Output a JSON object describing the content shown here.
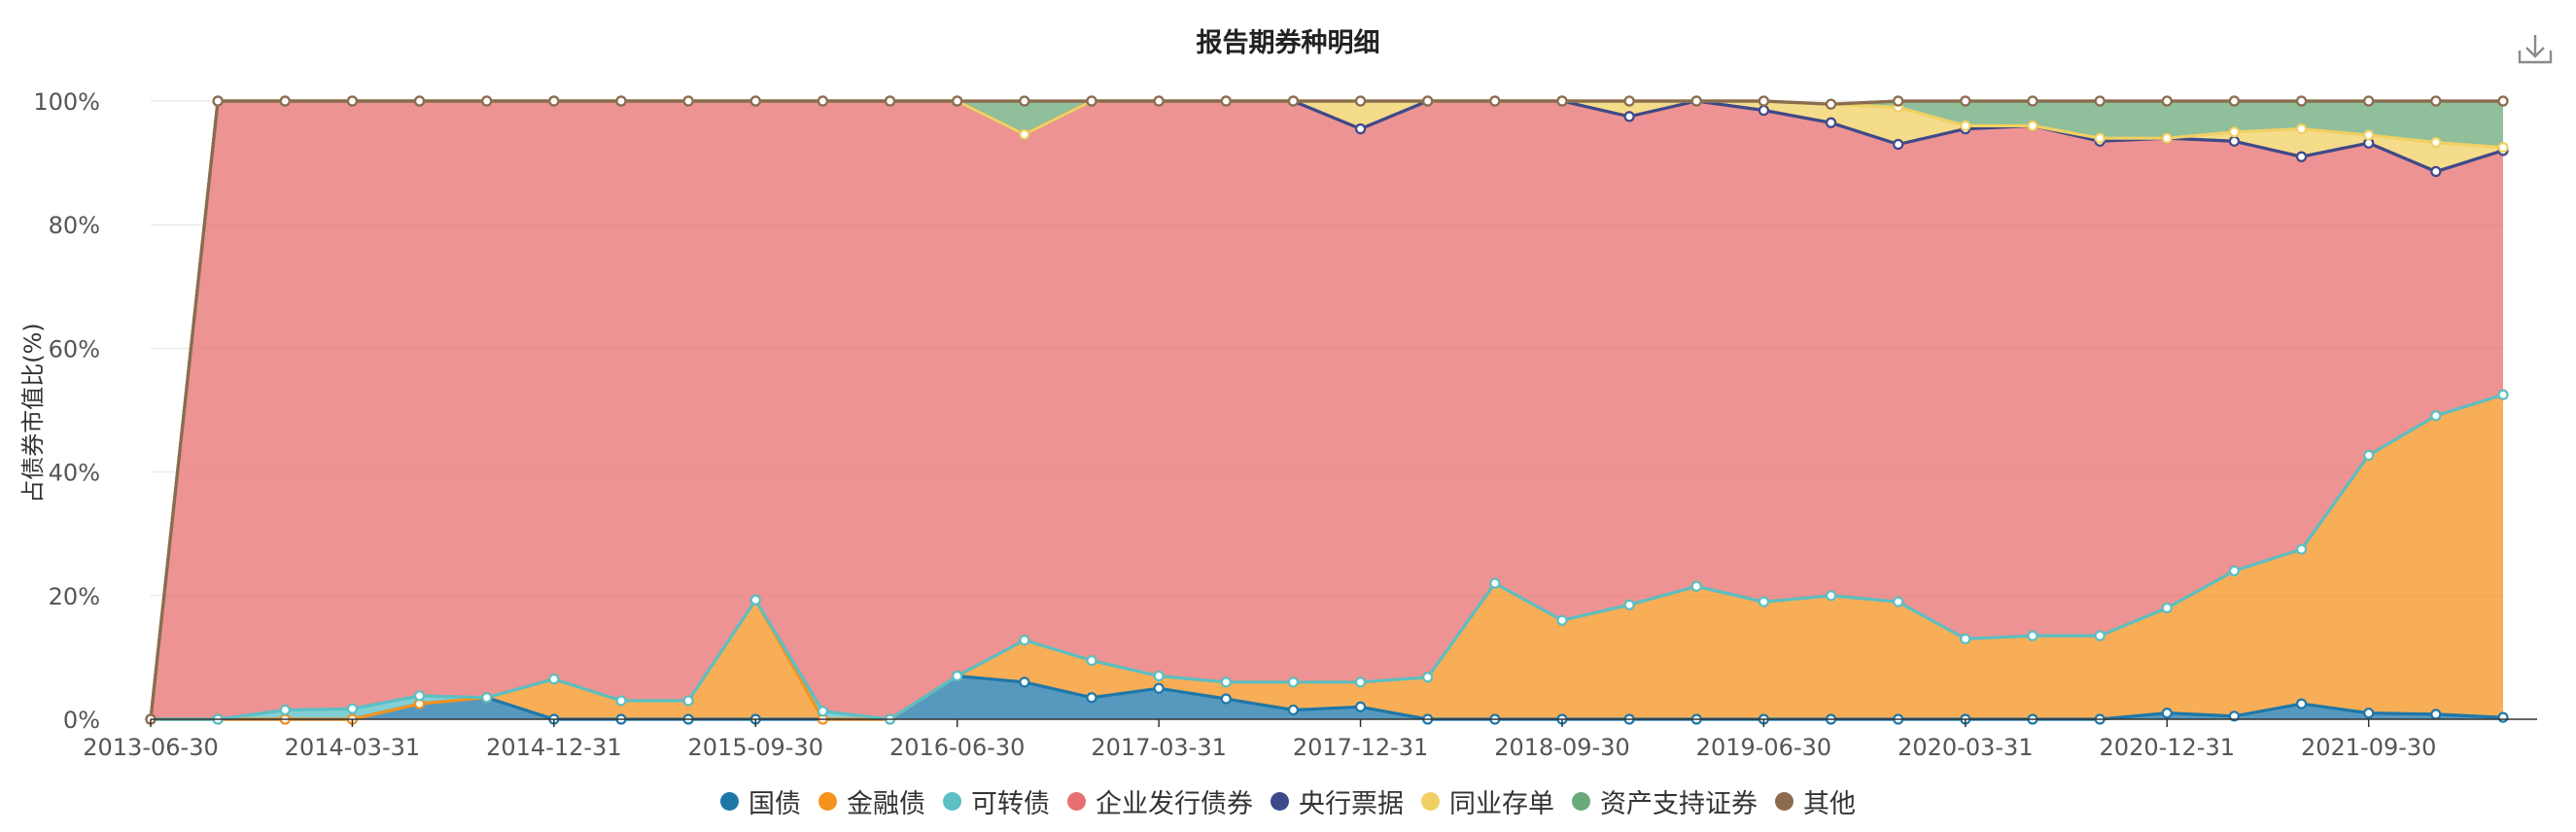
{
  "toolbar": {
    "download_icon": "download-icon"
  },
  "chart_data": {
    "type": "area",
    "stacked": true,
    "title": "报告期券种明细",
    "ylabel": "占债券市值比(%)",
    "xlabel": "",
    "ylim": [
      0,
      100
    ],
    "y_ticks": [
      "0%",
      "20%",
      "40%",
      "60%",
      "80%",
      "100%"
    ],
    "x_tick_labels": [
      "2013-06-30",
      "2014-03-31",
      "2014-12-31",
      "2015-09-30",
      "2016-06-30",
      "2017-03-31",
      "2017-12-31",
      "2018-09-30",
      "2019-06-30",
      "2020-03-31",
      "2020-12-31",
      "2021-09-30"
    ],
    "grid": true,
    "legend_position": "bottom",
    "categories": [
      "2013-06-30",
      "2013-09-30",
      "2013-12-31",
      "2014-03-31",
      "2014-06-30",
      "2014-09-30",
      "2014-12-31",
      "2015-03-31",
      "2015-06-30",
      "2015-09-30",
      "2015-12-31",
      "2016-03-31",
      "2016-06-30",
      "2016-09-30",
      "2016-12-31",
      "2017-03-31",
      "2017-06-30",
      "2017-09-30",
      "2017-12-31",
      "2018-03-31",
      "2018-06-30",
      "2018-09-30",
      "2018-12-31",
      "2019-03-31",
      "2019-06-30",
      "2019-09-30",
      "2019-12-31",
      "2020-03-31",
      "2020-06-30",
      "2020-09-30",
      "2020-12-31",
      "2021-03-31",
      "2021-06-30",
      "2021-09-30",
      "2021-12-31",
      "2022-03-31"
    ],
    "series": [
      {
        "name": "国债",
        "color": "#1f77a8",
        "values": [
          0,
          0,
          0,
          0,
          2.5,
          3.5,
          0,
          0,
          0,
          0,
          0,
          0,
          7,
          6,
          3.5,
          5,
          3.3,
          1.5,
          2,
          0,
          0,
          0,
          0,
          0,
          0,
          0,
          0,
          0,
          0,
          0,
          1,
          0.5,
          2.5,
          1,
          0.8,
          0.3
        ]
      },
      {
        "name": "金融债",
        "color": "#f5931f",
        "values": [
          0,
          0,
          0,
          0,
          0,
          0,
          6.5,
          3,
          3,
          19.3,
          0,
          0,
          0,
          6.8,
          6,
          2,
          2.7,
          4.5,
          4,
          6.8,
          22,
          16,
          18.5,
          21.5,
          19,
          20,
          19,
          13,
          13.5,
          13.5,
          17,
          23.5,
          25,
          41.7,
          48.3,
          52.2
        ]
      },
      {
        "name": "可转债",
        "color": "#5bbfc4",
        "values": [
          0,
          0,
          1.5,
          1.7,
          1.3,
          0,
          0,
          0,
          0,
          0,
          1.3,
          0,
          0,
          0,
          0,
          0,
          0,
          0,
          0,
          0,
          0,
          0,
          0,
          0,
          0,
          0,
          0,
          0,
          0,
          0,
          0,
          0,
          0,
          0,
          0,
          0
        ]
      },
      {
        "name": "企业发行债券",
        "color": "#e76f6f",
        "values": [
          0,
          100,
          98.5,
          98.3,
          96.2,
          96.5,
          93.5,
          97,
          97,
          80.7,
          98.7,
          100,
          93,
          81.8,
          90.5,
          93,
          94,
          94,
          89.5,
          93.2,
          78,
          84,
          79,
          78.5,
          79.5,
          76.5,
          74,
          82.5,
          82.5,
          80,
          76,
          69.5,
          63.5,
          50.5,
          39.5,
          39.5
        ]
      },
      {
        "name": "央行票据",
        "color": "#3d4a8a",
        "values": [
          0,
          0,
          0,
          0,
          0,
          0,
          0,
          0,
          0,
          0,
          0,
          0,
          0,
          0,
          0,
          0,
          0,
          0,
          0,
          0,
          0,
          0,
          0,
          0,
          0,
          0,
          0,
          0,
          0,
          0,
          0,
          0,
          0,
          0,
          0,
          0
        ]
      },
      {
        "name": "同业存单",
        "color": "#f0d064",
        "values": [
          0,
          0,
          0,
          0,
          0,
          0,
          0,
          0,
          0,
          0,
          0,
          0,
          0,
          0,
          0,
          0,
          0,
          0,
          4.5,
          0,
          0,
          0,
          2.5,
          0,
          1.5,
          3,
          6,
          0.5,
          0,
          0.5,
          0,
          1.5,
          4.5,
          1.3,
          4.7,
          0.5
        ]
      },
      {
        "name": "资产支持证券",
        "color": "#6aaa7a",
        "values": [
          0,
          0,
          0,
          0,
          0,
          0,
          0,
          0,
          0,
          0,
          0,
          0,
          0,
          5.4,
          0,
          0,
          0,
          0,
          0,
          0,
          0,
          0,
          0,
          0,
          0,
          0,
          1,
          4,
          4,
          6,
          6,
          5,
          4.5,
          5.5,
          6.7,
          7.5
        ]
      },
      {
        "name": "其他",
        "color": "#8c6b4e",
        "values": [
          0,
          0,
          0,
          0,
          0,
          0,
          0,
          0,
          0,
          0,
          0,
          0,
          0,
          0,
          0,
          0,
          0,
          0,
          0,
          0,
          0,
          0,
          0,
          0,
          0,
          0,
          0,
          0,
          0,
          0,
          0,
          0,
          0,
          0,
          0,
          0
        ]
      }
    ]
  }
}
